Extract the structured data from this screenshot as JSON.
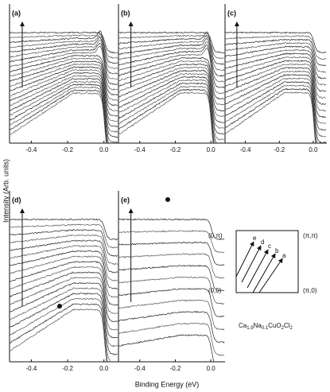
{
  "panels": [
    {
      "label": "(a)",
      "xlim": [
        -0.52,
        0.08
      ],
      "xticks": [
        -0.4,
        -0.2,
        {
          "value": 0,
          "label": "0.0"
        }
      ]
    },
    {
      "label": "(b)",
      "xlim": [
        -0.52,
        0.08
      ],
      "xticks": [
        -0.4,
        -0.2,
        {
          "value": 0,
          "label": "0.0"
        }
      ]
    },
    {
      "label": "(c)",
      "xlim": [
        -0.52,
        0.08
      ],
      "xticks": [
        -0.4,
        -0.2,
        {
          "value": 0,
          "label": "0.0"
        }
      ]
    },
    {
      "label": "(d)",
      "xlim": [
        -0.52,
        0.08
      ],
      "xticks": [
        -0.4,
        -0.2,
        {
          "value": 0,
          "label": "0.0"
        }
      ]
    },
    {
      "label": "(e)",
      "xlim": [
        -0.52,
        0.08
      ],
      "xticks": [
        -0.4,
        -0.2,
        {
          "value": 0,
          "label": "0.0"
        }
      ]
    }
  ],
  "y_label": "Intensity (Arb. units)",
  "x_label": "Binding Energy (eV)",
  "inset": {
    "corners": [
      "(0,π)",
      "(π,π)",
      "(0,0)",
      "(π,0)"
    ],
    "cuts": [
      "e",
      "d",
      "c",
      "b",
      "a"
    ]
  },
  "formula": [
    "Ca",
    "1.9",
    "Na",
    "0.1",
    "CuO",
    "2",
    "Cl",
    "2"
  ]
}
